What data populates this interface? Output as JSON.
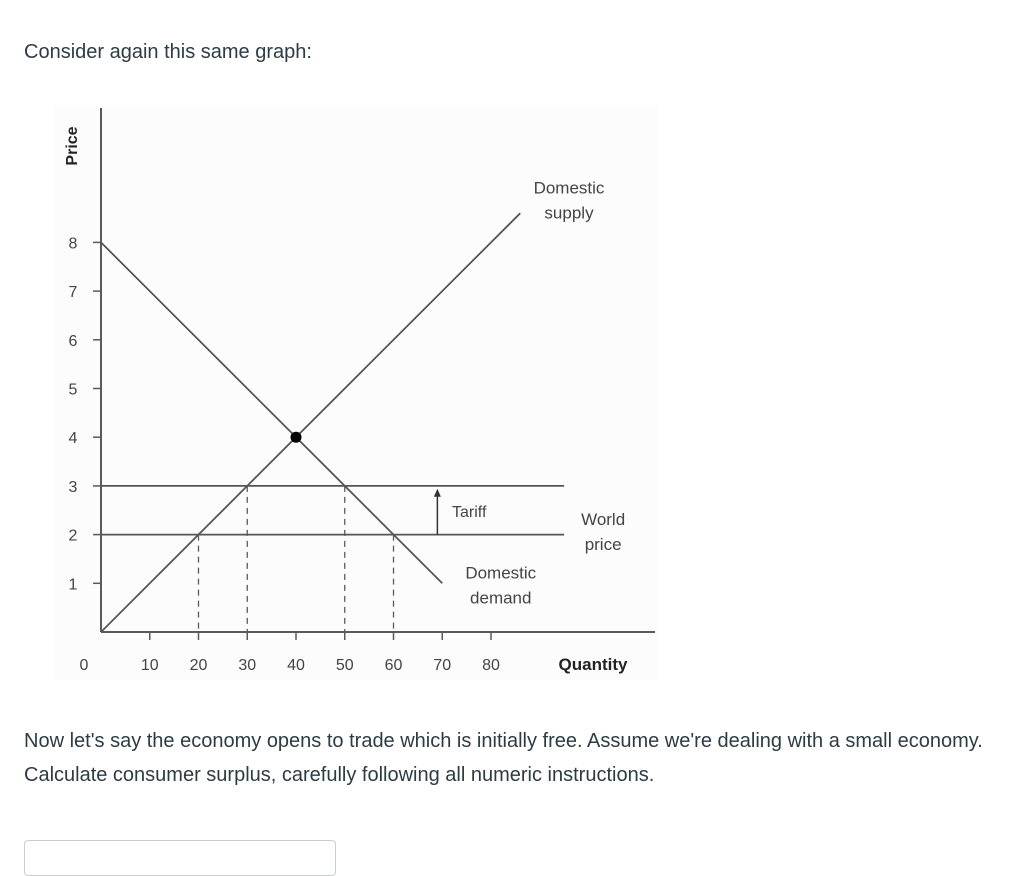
{
  "page": {
    "intro_text": "Consider again this same graph:",
    "question_text": "Now let's say the economy opens to trade which is initially free.  Assume we're dealing with a small economy.  Calculate consumer surplus, carefully following all numeric instructions.",
    "answer_input": {
      "value": "",
      "placeholder": ""
    }
  },
  "chart_data": {
    "type": "line",
    "title": "",
    "xlabel": "Quantity",
    "ylabel": "Price",
    "xlim": [
      0,
      110
    ],
    "ylim": [
      0,
      10
    ],
    "x_ticks": [
      0,
      10,
      20,
      30,
      40,
      50,
      60,
      70,
      80
    ],
    "y_ticks": [
      1,
      2,
      3,
      4,
      5,
      6,
      7,
      8
    ],
    "grid": false,
    "legend": null,
    "series": [
      {
        "name": "Domestic supply",
        "points": [
          [
            0,
            0
          ],
          [
            86,
            8.6
          ]
        ],
        "equation": "P = Q/10",
        "color": "#555555"
      },
      {
        "name": "Domestic demand",
        "points": [
          [
            0,
            8
          ],
          [
            70,
            1
          ]
        ],
        "equation": "P = 8 - Q/10",
        "color": "#555555"
      },
      {
        "name": "World price",
        "points": [
          [
            0,
            2
          ],
          [
            95,
            2
          ]
        ],
        "color": "#555555"
      },
      {
        "name": "World price + Tariff",
        "points": [
          [
            0,
            3
          ],
          [
            95,
            3
          ]
        ],
        "color": "#555555"
      }
    ],
    "equilibrium": {
      "x": 40,
      "y": 4,
      "label": ""
    },
    "dashed_verticals": [
      {
        "x": 20,
        "from_y": 0,
        "to_y": 2
      },
      {
        "x": 30,
        "from_y": 0,
        "to_y": 3
      },
      {
        "x": 50,
        "from_y": 0,
        "to_y": 3
      },
      {
        "x": 60,
        "from_y": 0,
        "to_y": 2
      }
    ],
    "annotations": [
      {
        "text": "Domestic",
        "text2": "supply",
        "x": 96,
        "y": 9.0
      },
      {
        "text": "Tariff",
        "x": 72,
        "y": 2.4,
        "arrow": {
          "x": 69,
          "from_y": 2,
          "to_y": 2.9
        }
      },
      {
        "text": "World",
        "text2": "price",
        "x": 103,
        "y": 2.2
      },
      {
        "text": "Domestic",
        "text2": "demand",
        "x": 82,
        "y": 1.1
      }
    ]
  }
}
